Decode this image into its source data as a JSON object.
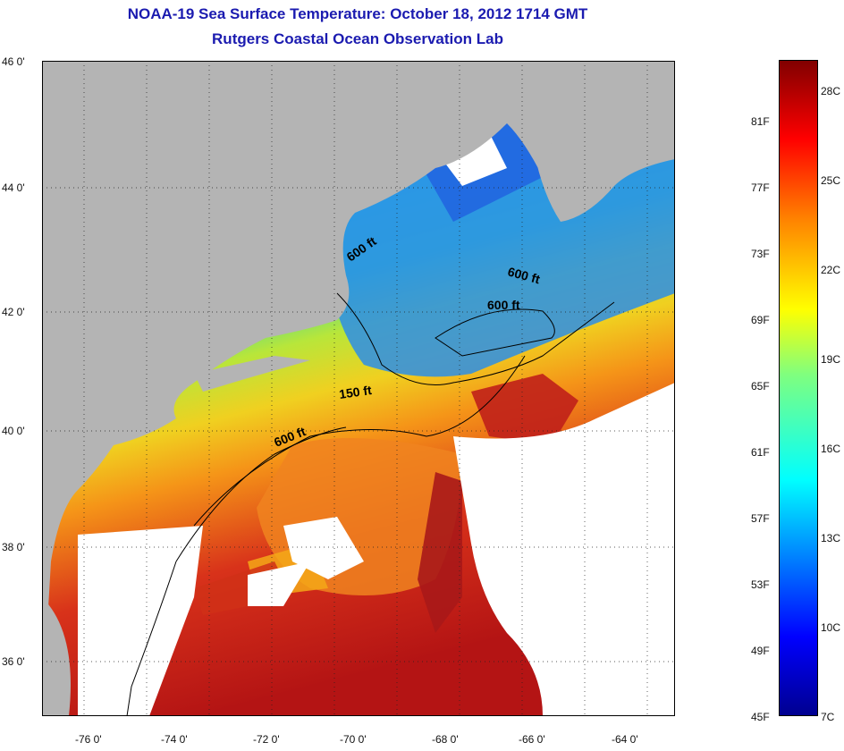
{
  "title": "NOAA-19 Sea Surface Temperature:  October 18, 2012 1714 GMT",
  "subtitle": "Rutgers Coastal Ocean Observation Lab",
  "lat_labels": [
    "46 0'",
    "44 0'",
    "42 0'",
    "40 0'",
    "38 0'",
    "36 0'"
  ],
  "lon_labels": [
    "-76 0'",
    "-74 0'",
    "-72 0'",
    "-70 0'",
    "-68 0'",
    "-66 0'",
    "-64 0'"
  ],
  "contour_labels": [
    "600 ft",
    "600 ft",
    "600 ft",
    "150 ft",
    "600 ft"
  ],
  "colorbar": {
    "fahrenheit": [
      "81F",
      "77F",
      "73F",
      "69F",
      "65F",
      "61F",
      "57F",
      "53F",
      "49F",
      "45F"
    ],
    "celsius": [
      "28C",
      "25C",
      "22C",
      "19C",
      "16C",
      "13C",
      "10C",
      "7C"
    ]
  },
  "colors": {
    "title": "#1b1bb0",
    "land": "#b4b4b4",
    "cloud": "#ffffff",
    "warm": "#c81e14",
    "cool": "#1e8ce6"
  }
}
